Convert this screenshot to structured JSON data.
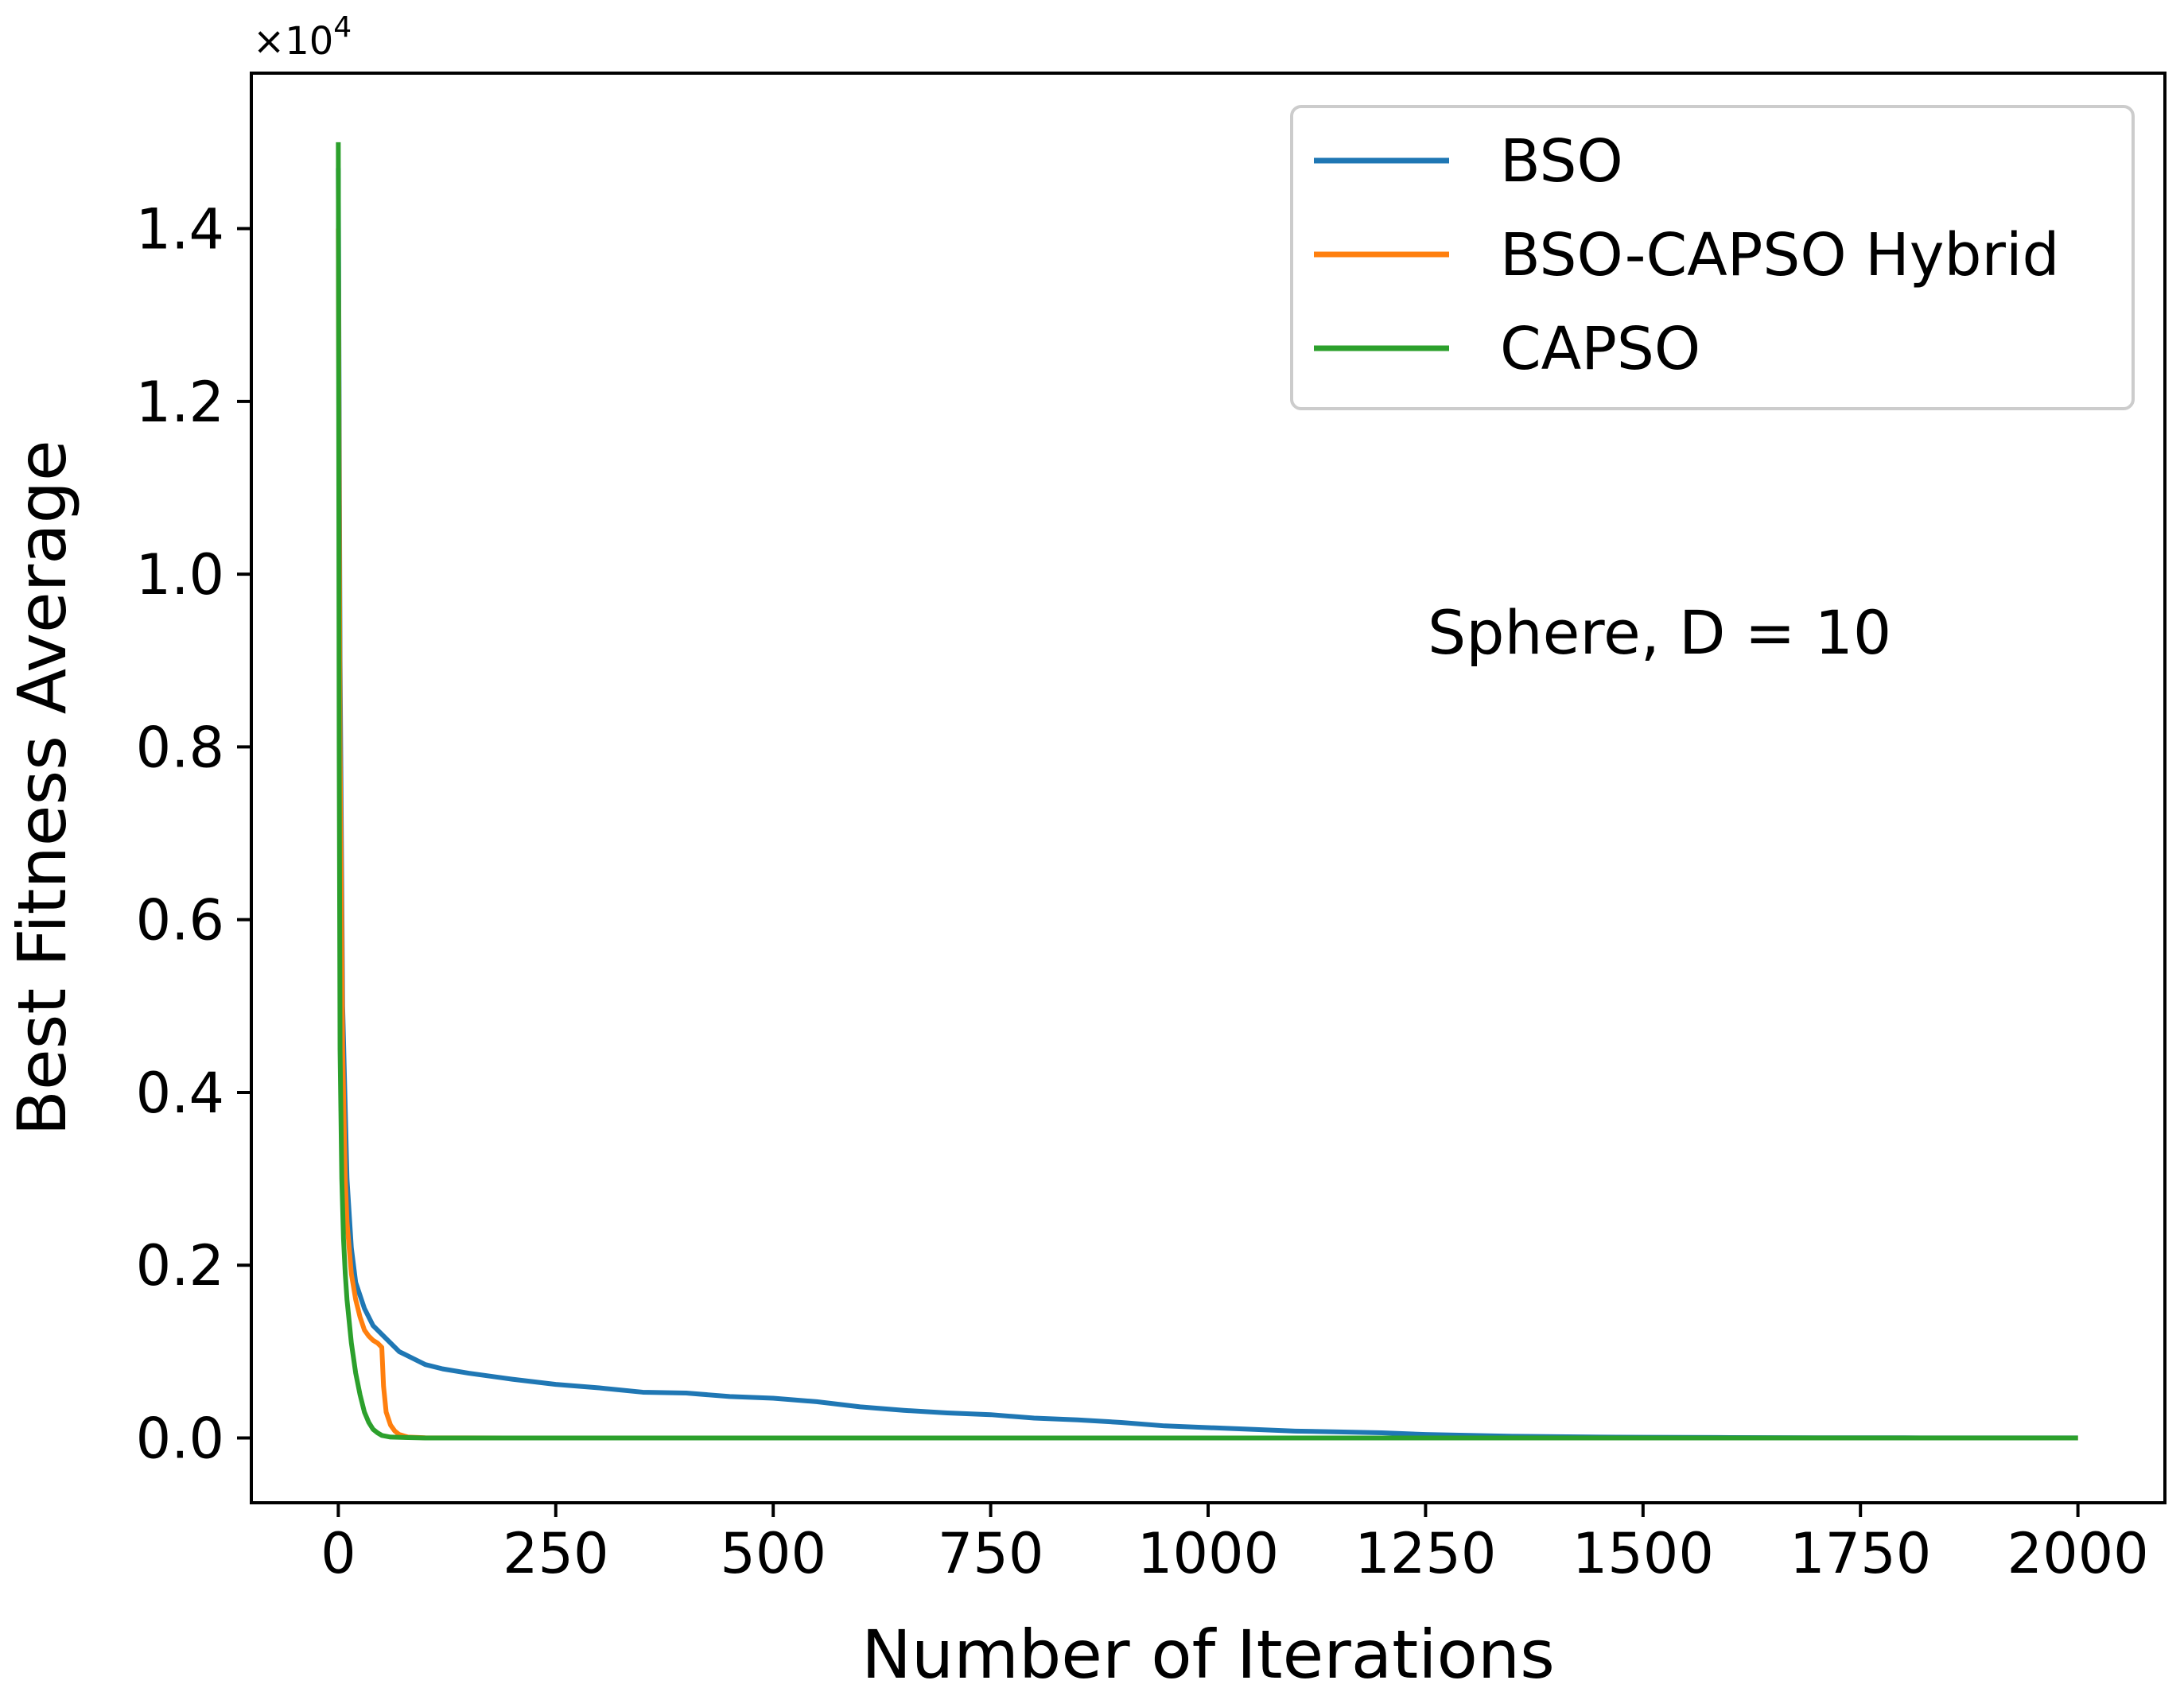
{
  "chart_data": {
    "type": "line",
    "title": "",
    "annotation": "Sphere, D = 10",
    "xlabel": "Number of Iterations",
    "ylabel": "Best Fitness Average",
    "y_multiplier": "×10",
    "y_multiplier_exponent": "4",
    "xlim": [
      -100,
      2100
    ],
    "ylim": [
      -0.075,
      1.58
    ],
    "x_ticks": [
      0,
      250,
      500,
      750,
      1000,
      1250,
      1500,
      1750,
      2000
    ],
    "x_tick_labels": [
      "0",
      "250",
      "500",
      "750",
      "1000",
      "1250",
      "1500",
      "1750",
      "2000"
    ],
    "y_ticks": [
      0.0,
      0.2,
      0.4,
      0.6,
      0.8,
      1.0,
      1.2,
      1.4
    ],
    "y_tick_labels": [
      "0.0",
      "0.2",
      "0.4",
      "0.6",
      "0.8",
      "1.0",
      "1.2",
      "1.4"
    ],
    "grid": false,
    "legend_position": "top-right",
    "series": [
      {
        "name": "BSO",
        "color": "#1f77b4",
        "x": [
          0,
          2,
          5,
          10,
          15,
          20,
          30,
          40,
          50,
          60,
          70,
          80,
          100,
          120,
          150,
          200,
          250,
          300,
          350,
          400,
          450,
          500,
          550,
          600,
          650,
          700,
          750,
          800,
          850,
          900,
          950,
          1000,
          1050,
          1100,
          1150,
          1200,
          1250,
          1300,
          1350,
          1400,
          1450,
          1500,
          1600,
          1700,
          1800,
          1900,
          2000
        ],
        "values": [
          1.47,
          0.9,
          0.5,
          0.3,
          0.22,
          0.18,
          0.15,
          0.13,
          0.12,
          0.11,
          0.1,
          0.095,
          0.085,
          0.08,
          0.075,
          0.068,
          0.062,
          0.058,
          0.053,
          0.052,
          0.048,
          0.046,
          0.042,
          0.036,
          0.032,
          0.029,
          0.027,
          0.023,
          0.021,
          0.018,
          0.014,
          0.012,
          0.01,
          0.008,
          0.007,
          0.006,
          0.004,
          0.003,
          0.002,
          0.0015,
          0.001,
          0.0008,
          0.0005,
          0.0003,
          0.0002,
          0.0001,
          0.0001
        ]
      },
      {
        "name": "BSO-CAPSO Hybrid",
        "color": "#ff7f0e",
        "x": [
          0,
          2,
          5,
          8,
          10,
          15,
          20,
          25,
          30,
          35,
          40,
          45,
          50,
          52,
          55,
          60,
          65,
          70,
          80,
          100,
          200,
          500,
          1000,
          1500,
          2000
        ],
        "values": [
          1.4,
          0.8,
          0.45,
          0.3,
          0.25,
          0.19,
          0.16,
          0.14,
          0.125,
          0.118,
          0.113,
          0.11,
          0.105,
          0.06,
          0.03,
          0.015,
          0.008,
          0.004,
          0.001,
          0.0003,
          0.0,
          0.0,
          0.0,
          0.0,
          0.0
        ]
      },
      {
        "name": "CAPSO",
        "color": "#2ca02c",
        "x": [
          0,
          1,
          2,
          4,
          6,
          8,
          10,
          15,
          20,
          25,
          30,
          35,
          40,
          45,
          50,
          60,
          100,
          200,
          500,
          1000,
          1500,
          2000
        ],
        "values": [
          1.5,
          0.8,
          0.45,
          0.3,
          0.23,
          0.19,
          0.16,
          0.11,
          0.075,
          0.05,
          0.03,
          0.018,
          0.01,
          0.006,
          0.003,
          0.001,
          0.0,
          0.0,
          0.0,
          0.0,
          0.0,
          0.0
        ]
      }
    ]
  }
}
